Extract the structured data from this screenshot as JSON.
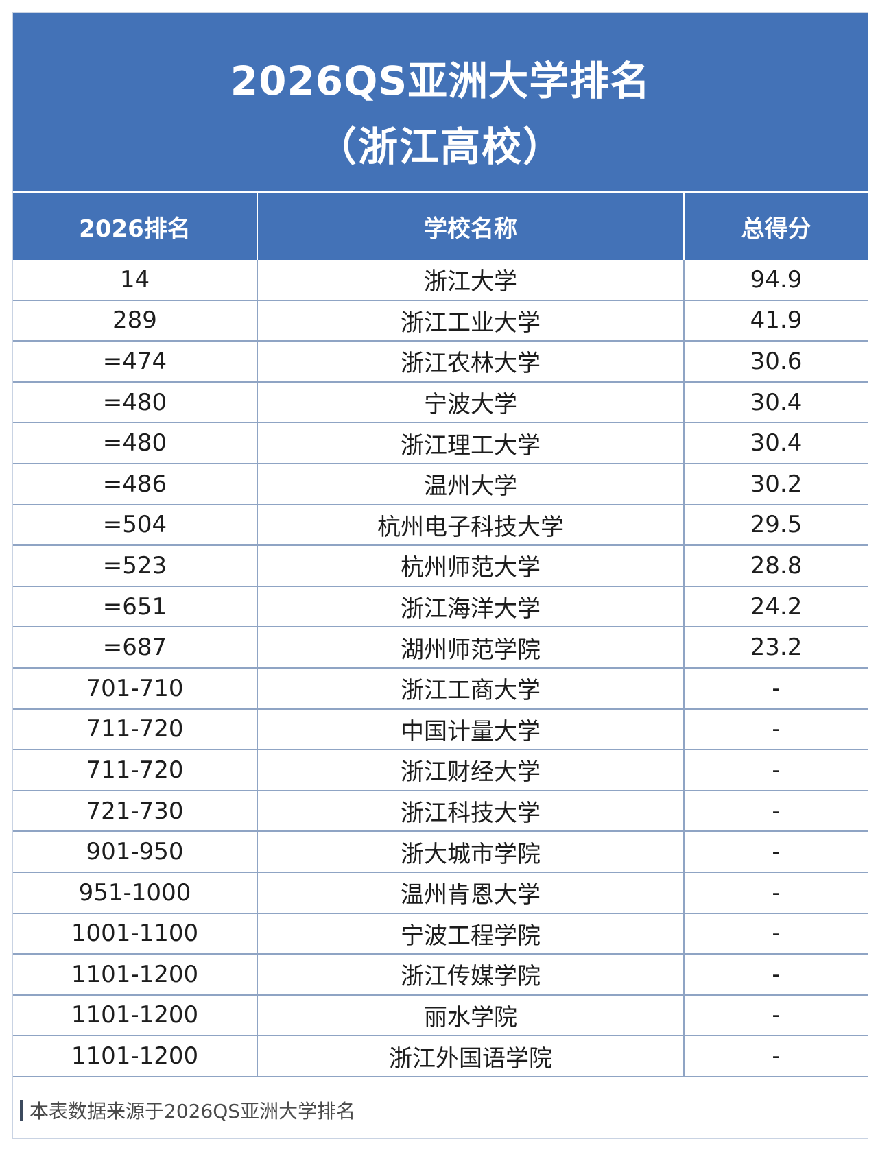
{
  "title": {
    "line1": "2026QS亚洲大学排名",
    "line2": "（浙江高校）"
  },
  "table": {
    "headers": [
      "2026排名",
      "学校名称",
      "总得分"
    ],
    "rows": [
      {
        "rank": "14",
        "school": "浙江大学",
        "score": "94.9"
      },
      {
        "rank": "289",
        "school": "浙江工业大学",
        "score": "41.9"
      },
      {
        "rank": "=474",
        "school": "浙江农林大学",
        "score": "30.6"
      },
      {
        "rank": "=480",
        "school": "宁波大学",
        "score": "30.4"
      },
      {
        "rank": "=480",
        "school": "浙江理工大学",
        "score": "30.4"
      },
      {
        "rank": "=486",
        "school": "温州大学",
        "score": "30.2"
      },
      {
        "rank": "=504",
        "school": "杭州电子科技大学",
        "score": "29.5"
      },
      {
        "rank": "=523",
        "school": "杭州师范大学",
        "score": "28.8"
      },
      {
        "rank": "=651",
        "school": "浙江海洋大学",
        "score": "24.2"
      },
      {
        "rank": "=687",
        "school": "湖州师范学院",
        "score": "23.2"
      },
      {
        "rank": "701-710",
        "school": "浙江工商大学",
        "score": "-"
      },
      {
        "rank": "711-720",
        "school": "中国计量大学",
        "score": "-"
      },
      {
        "rank": "711-720",
        "school": "浙江财经大学",
        "score": "-"
      },
      {
        "rank": "721-730",
        "school": "浙江科技大学",
        "score": "-"
      },
      {
        "rank": "901-950",
        "school": "浙大城市学院",
        "score": "-"
      },
      {
        "rank": "951-1000",
        "school": "温州肯恩大学",
        "score": "-"
      },
      {
        "rank": "1001-1100",
        "school": "宁波工程学院",
        "score": "-"
      },
      {
        "rank": "1101-1200",
        "school": "浙江传媒学院",
        "score": "-"
      },
      {
        "rank": "1101-1200",
        "school": "丽水学院",
        "score": "-"
      },
      {
        "rank": "1101-1200",
        "school": "浙江外国语学院",
        "score": "-"
      }
    ]
  },
  "footnote": "本表数据来源于2026QS亚洲大学排名",
  "colors": {
    "header_bg": "#4372b7",
    "header_text": "#ffffff",
    "grid_line": "#8fa4c4",
    "body_text": "#1d1d1d"
  }
}
